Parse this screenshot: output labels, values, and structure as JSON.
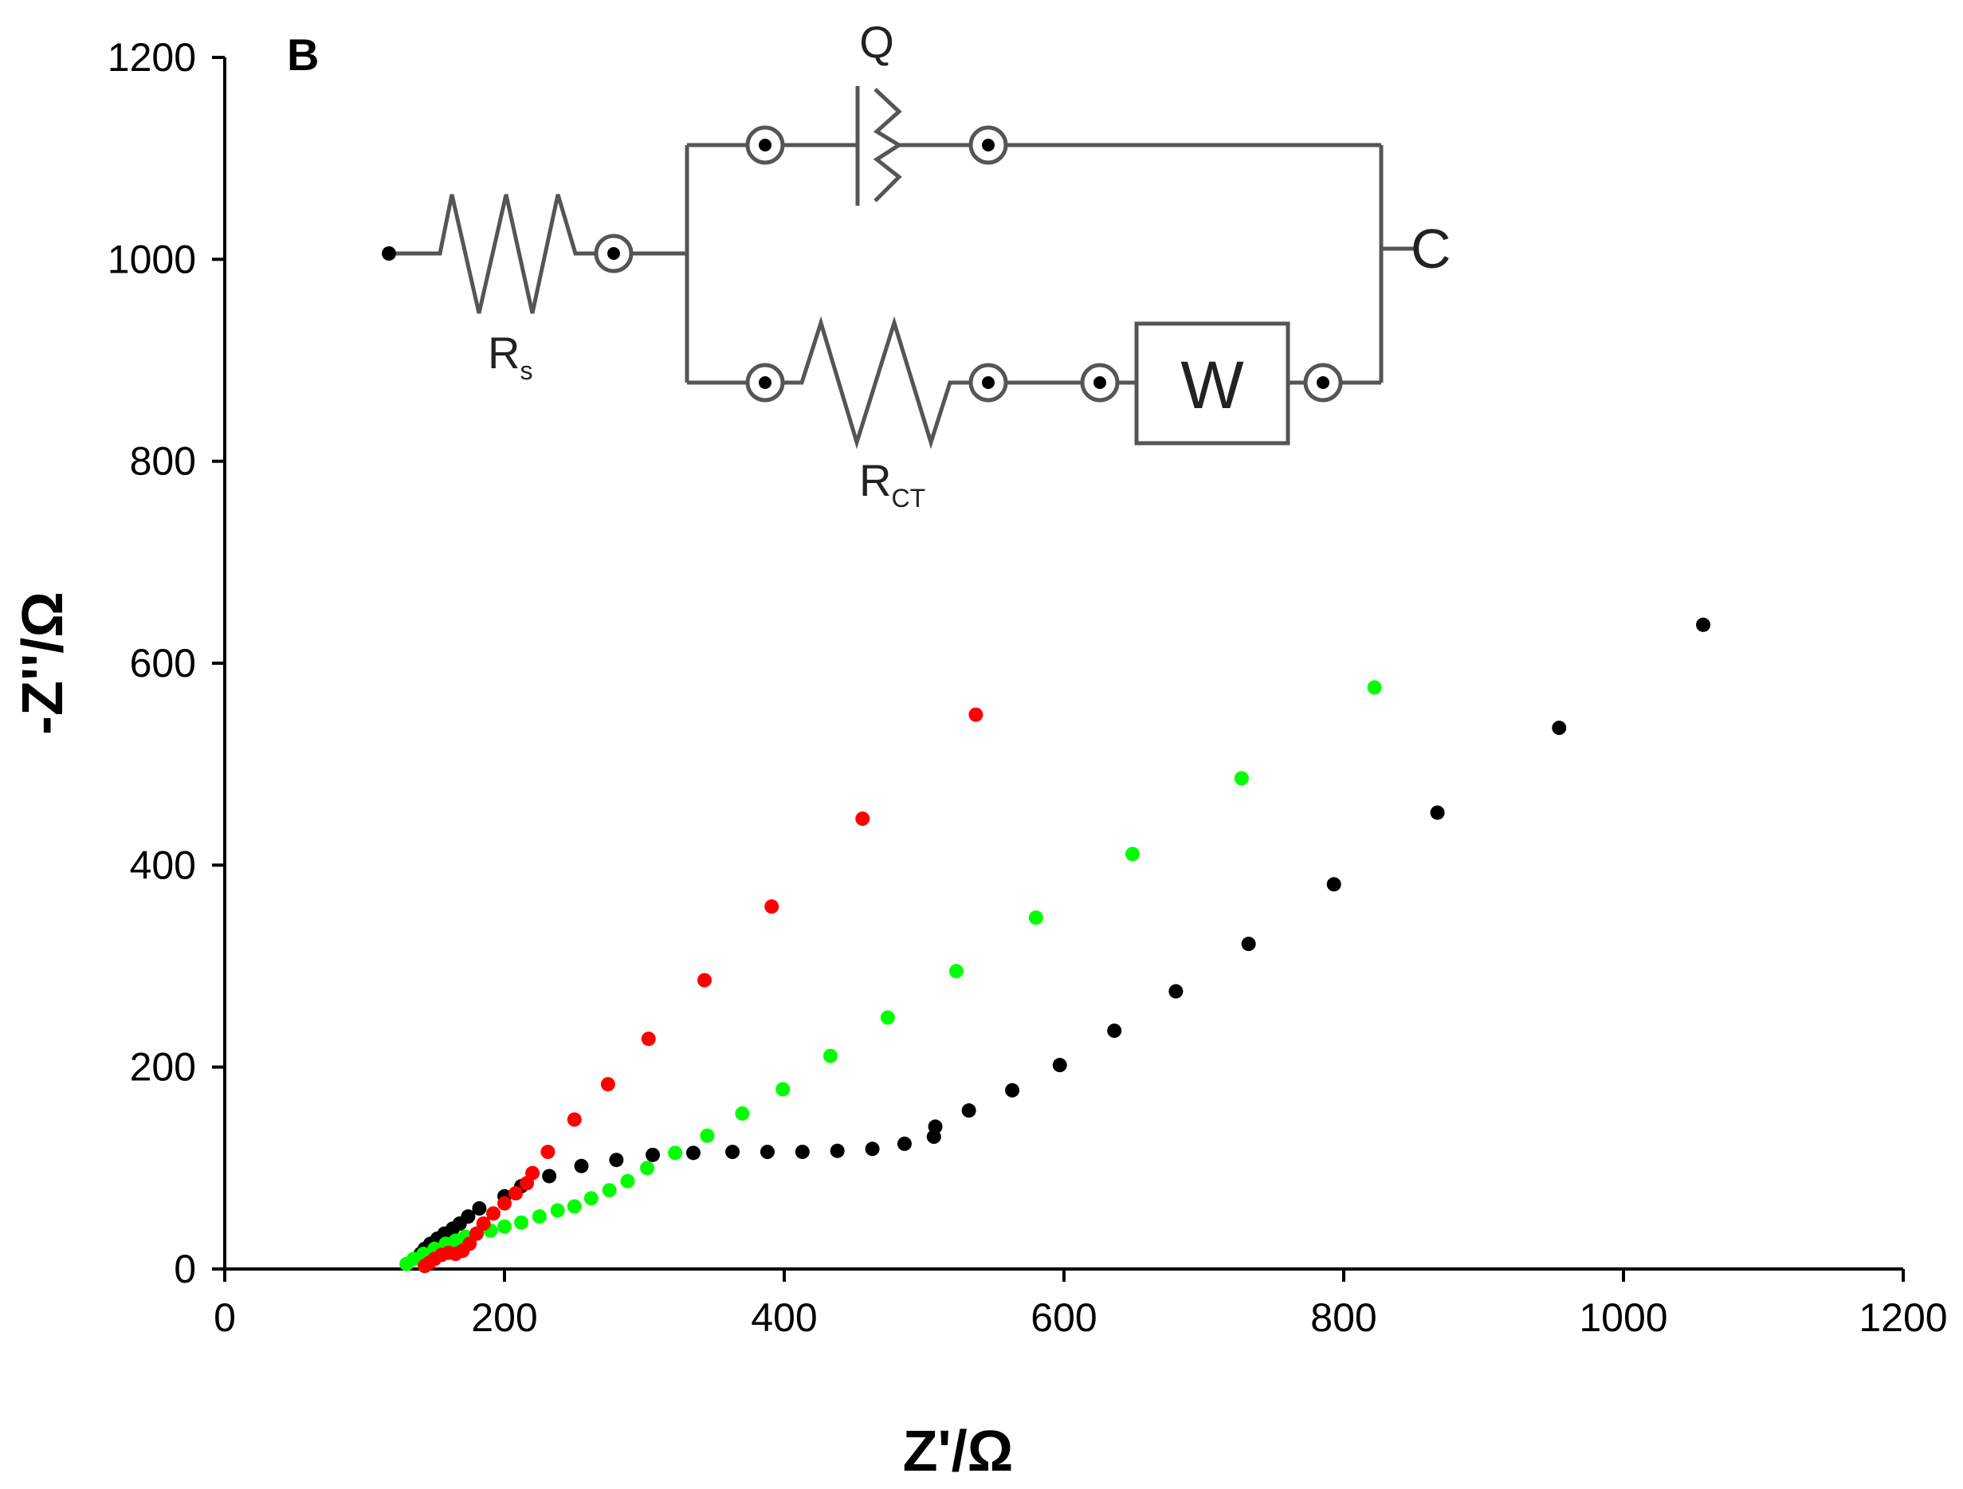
{
  "panel_label": "B",
  "chart_data": {
    "type": "scatter",
    "title": "",
    "xlabel": "Z'/Ω",
    "ylabel": "-Z''/Ω",
    "xlim": [
      0,
      1200
    ],
    "ylim": [
      0,
      1200
    ],
    "xticks": [
      "0",
      "200",
      "400",
      "600",
      "800",
      "1000",
      "1200"
    ],
    "yticks": [
      "0",
      "200",
      "400",
      "600",
      "800",
      "1000",
      "1200"
    ],
    "grid": false,
    "legend": "none",
    "series": [
      {
        "name": "black",
        "color": "#000000",
        "points": [
          [
            140,
            15
          ],
          [
            143,
            20
          ],
          [
            147,
            25
          ],
          [
            152,
            30
          ],
          [
            157,
            35
          ],
          [
            163,
            40
          ],
          [
            168,
            45
          ],
          [
            174,
            52
          ],
          [
            182,
            60
          ],
          [
            200,
            72
          ],
          [
            212,
            82
          ],
          [
            232,
            92
          ],
          [
            255,
            102
          ],
          [
            280,
            108
          ],
          [
            306,
            113
          ],
          [
            335,
            115
          ],
          [
            363,
            116
          ],
          [
            388,
            116
          ],
          [
            413,
            116
          ],
          [
            438,
            117
          ],
          [
            463,
            119
          ],
          [
            486,
            124
          ],
          [
            507,
            131
          ],
          [
            508,
            141
          ],
          [
            532,
            157
          ],
          [
            563,
            177
          ],
          [
            597,
            202
          ],
          [
            636,
            236
          ],
          [
            680,
            275
          ],
          [
            732,
            322
          ],
          [
            793,
            381
          ],
          [
            867,
            452
          ],
          [
            954,
            536
          ],
          [
            1057,
            638
          ]
        ]
      },
      {
        "name": "green",
        "color": "#00ff00",
        "points": [
          [
            130,
            5
          ],
          [
            135,
            10
          ],
          [
            142,
            15
          ],
          [
            150,
            20
          ],
          [
            158,
            25
          ],
          [
            165,
            28
          ],
          [
            172,
            32
          ],
          [
            180,
            35
          ],
          [
            190,
            38
          ],
          [
            200,
            42
          ],
          [
            212,
            46
          ],
          [
            225,
            52
          ],
          [
            238,
            58
          ],
          [
            250,
            62
          ],
          [
            262,
            70
          ],
          [
            275,
            78
          ],
          [
            288,
            87
          ],
          [
            302,
            100
          ],
          [
            322,
            115
          ],
          [
            345,
            132
          ],
          [
            370,
            154
          ],
          [
            399,
            178
          ],
          [
            433,
            211
          ],
          [
            474,
            249
          ],
          [
            523,
            295
          ],
          [
            580,
            348
          ],
          [
            649,
            411
          ],
          [
            727,
            486
          ],
          [
            822,
            576
          ]
        ]
      },
      {
        "name": "red",
        "color": "#ff0000",
        "points": [
          [
            143,
            3
          ],
          [
            146,
            6
          ],
          [
            150,
            10
          ],
          [
            155,
            14
          ],
          [
            160,
            16
          ],
          [
            165,
            15
          ],
          [
            170,
            18
          ],
          [
            175,
            25
          ],
          [
            180,
            35
          ],
          [
            185,
            45
          ],
          [
            192,
            55
          ],
          [
            200,
            65
          ],
          [
            208,
            75
          ],
          [
            216,
            85
          ],
          [
            220,
            95
          ],
          [
            231,
            116
          ],
          [
            250,
            148
          ],
          [
            274,
            183
          ],
          [
            303,
            228
          ],
          [
            343,
            286
          ],
          [
            391,
            359
          ],
          [
            456,
            446
          ],
          [
            537,
            549
          ]
        ]
      }
    ],
    "inset_circuit": {
      "labels": {
        "rs": "R",
        "rs_sub": "s",
        "q": "Q",
        "rct": "R",
        "rct_sub": "CT",
        "w": "W",
        "terminal_end": "C"
      }
    }
  }
}
